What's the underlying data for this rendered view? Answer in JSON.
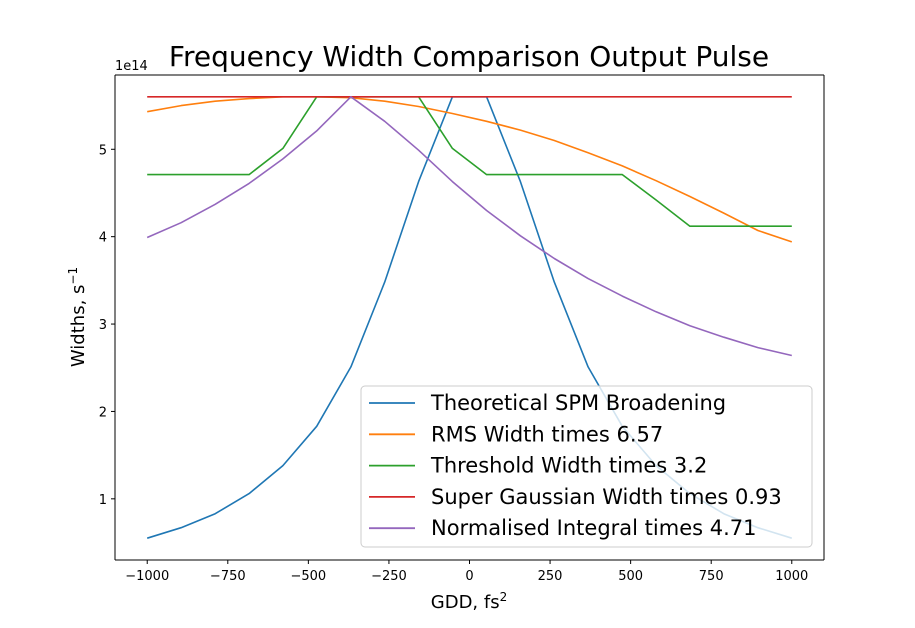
{
  "chart_data": {
    "type": "line",
    "title": "Frequency Width Comparison Output Pulse",
    "xlabel": "GDD, fs",
    "xlabel_sup": "2",
    "ylabel": "Widths, s",
    "ylabel_sup": "−1",
    "y_offset_label": "1e14",
    "xlim": [
      -1100,
      1100
    ],
    "ylim": [
      30000000000000.0,
      585000000000000.0
    ],
    "xticks": [
      -1000,
      -750,
      -500,
      -250,
      0,
      250,
      500,
      750,
      1000
    ],
    "xtick_labels": [
      "−1000",
      "−750",
      "−500",
      "−250",
      "0",
      "250",
      "500",
      "750",
      "1000"
    ],
    "yticks": [
      100000000000000.0,
      200000000000000.0,
      300000000000000.0,
      400000000000000.0,
      500000000000000.0
    ],
    "ytick_labels": [
      "1",
      "2",
      "3",
      "4",
      "5"
    ],
    "grid": false,
    "legend_position": "lower-right",
    "x": [
      -1000,
      -895,
      -789,
      -684,
      -579,
      -474,
      -368,
      -263,
      -158,
      -53,
      53,
      158,
      263,
      368,
      474,
      579,
      684,
      789,
      895,
      1000
    ],
    "series": [
      {
        "name": "Theoretical SPM Broadening",
        "color": "#1f77b4",
        "values": [
          55000000000000.0,
          67000000000000.0,
          83000000000000.0,
          106000000000000.0,
          138000000000000.0,
          183000000000000.0,
          251000000000000.0,
          348000000000000.0,
          463000000000000.0,
          560000000000000.0,
          560000000000000.0,
          463000000000000.0,
          348000000000000.0,
          251000000000000.0,
          183000000000000.0,
          138000000000000.0,
          106000000000000.0,
          83000000000000.0,
          67000000000000.0,
          55000000000000.0
        ]
      },
      {
        "name": "RMS Width times 6.57",
        "color": "#ff7f0e",
        "values": [
          543000000000000.0,
          550000000000000.0,
          555000000000000.0,
          558000000000000.0,
          560000000000000.0,
          560000000000000.0,
          559000000000000.0,
          555000000000000.0,
          549000000000000.0,
          541000000000000.0,
          532000000000000.0,
          522000000000000.0,
          510000000000000.0,
          496000000000000.0,
          481000000000000.0,
          464000000000000.0,
          446000000000000.0,
          427000000000000.0,
          407000000000000.0,
          394000000000000.0
        ]
      },
      {
        "name": "Threshold Width times 3.2",
        "color": "#2ca02c",
        "values": [
          471000000000000.0,
          471000000000000.0,
          471000000000000.0,
          471000000000000.0,
          501000000000000.0,
          560000000000000.0,
          560000000000000.0,
          560000000000000.0,
          560000000000000.0,
          501000000000000.0,
          471000000000000.0,
          471000000000000.0,
          471000000000000.0,
          471000000000000.0,
          471000000000000.0,
          442000000000000.0,
          412000000000000.0,
          412000000000000.0,
          412000000000000.0,
          412000000000000.0
        ]
      },
      {
        "name": "Super Gaussian Width times 0.93",
        "color": "#d62728",
        "values": [
          560000000000000.0,
          560000000000000.0,
          560000000000000.0,
          560000000000000.0,
          560000000000000.0,
          560000000000000.0,
          560000000000000.0,
          560000000000000.0,
          560000000000000.0,
          560000000000000.0,
          560000000000000.0,
          560000000000000.0,
          560000000000000.0,
          560000000000000.0,
          560000000000000.0,
          560000000000000.0,
          560000000000000.0,
          560000000000000.0,
          560000000000000.0,
          560000000000000.0
        ]
      },
      {
        "name": "Normalised Integral times 4.71",
        "color": "#9467bd",
        "values": [
          399000000000000.0,
          416000000000000.0,
          437000000000000.0,
          461000000000000.0,
          489000000000000.0,
          521000000000000.0,
          560000000000000.0,
          532000000000000.0,
          499000000000000.0,
          463000000000000.0,
          430000000000000.0,
          401000000000000.0,
          375000000000000.0,
          352000000000000.0,
          332000000000000.0,
          314000000000000.0,
          298000000000000.0,
          285000000000000.0,
          273000000000000.0,
          264000000000000.0
        ]
      }
    ]
  }
}
